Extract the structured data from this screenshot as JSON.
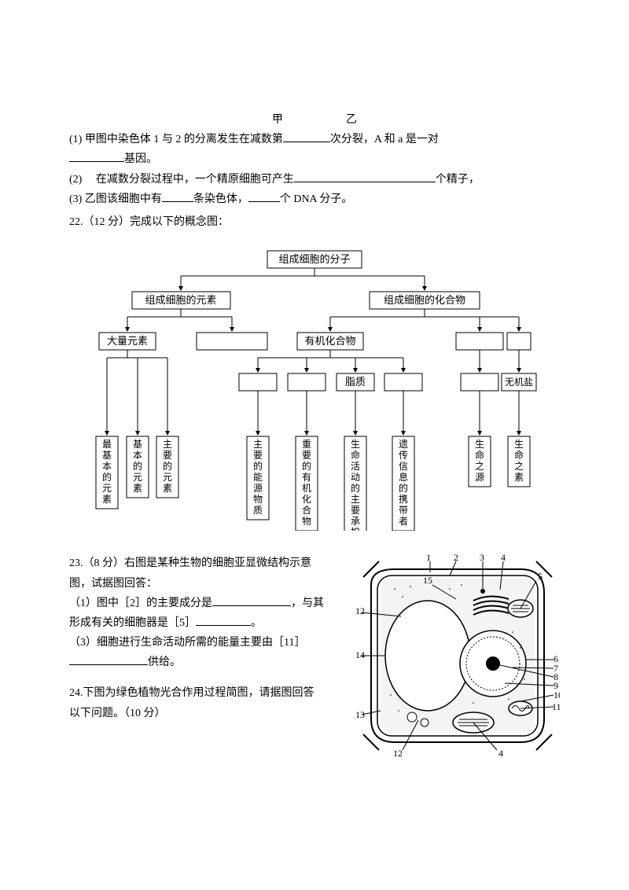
{
  "header": {
    "jia": "甲",
    "yi": "乙"
  },
  "q21": {
    "line1a": "(1) 甲图中染色体 1 与 2 的分离发生在减数第",
    "line1b": "次分裂，A 和 a 是一对",
    "line2a": "基因。",
    "line3a": "(2)",
    "line3b": "在减数分裂过程中，一个精原细胞可产生",
    "line3c": "个精子，",
    "line4a": "(3) 乙图该细胞中有",
    "line4b": "条染色体，",
    "line4c": "个 DNA 分子。"
  },
  "q22": {
    "title": "22.（12 分）完成以下的概念图："
  },
  "conceptMap": {
    "root": "组成细胞的分子",
    "level2": [
      "组成细胞的元素",
      "组成细胞的化合物"
    ],
    "level3": [
      "大量元素",
      "",
      "有机化合物",
      "",
      ""
    ],
    "level4": [
      "",
      "",
      "脂质",
      "",
      "",
      "无机盐"
    ],
    "leaves": [
      "最基本的元素",
      "基本的元素",
      "主要的元素",
      "主要的能源物质",
      "重要的有机化合物",
      "生命活动的主要承担者",
      "遗传信息的携带者",
      "生命之源",
      "生命之素"
    ],
    "colors": {
      "box_border": "#000000",
      "line": "#000000",
      "arrowFill": "#000000"
    }
  },
  "q23": {
    "title": "23.（8 分）右图是某种生物的细胞亚显微结构示意",
    "line1": "图，试据图回答：",
    "line2a": "（1）图中［2］的主要成分是",
    "line2b": "，与其",
    "line3a": "形成有关的细胞器是［5］",
    "line3b": "。",
    "line4": "（3）细胞进行生命活动所需的能量主要由［11］",
    "line5": "供给。"
  },
  "cellDiagram": {
    "labels": [
      "1",
      "2",
      "3",
      "4",
      "5",
      "6",
      "7",
      "8",
      "9",
      "10",
      "11",
      "4",
      "12",
      "13",
      "14",
      "12",
      "15"
    ],
    "strokeColor": "#000000",
    "fillPattern": "#e8e8e8"
  },
  "q24": {
    "line1": "24.下图为绿色植物光合作用过程简图，请据图回答",
    "line2": "以下问题。（10 分）"
  }
}
